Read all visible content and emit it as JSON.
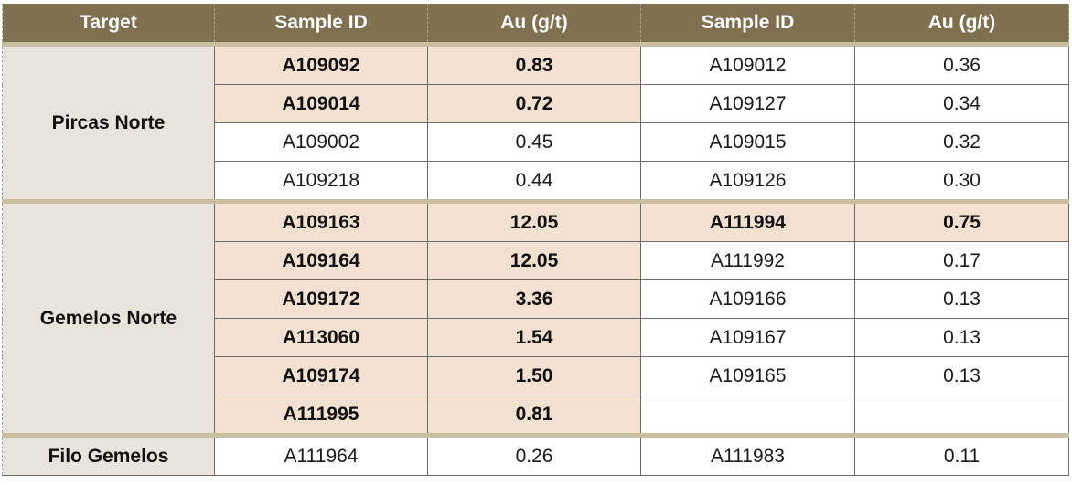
{
  "headers": [
    "Target",
    "Sample ID",
    "Au (g/t)",
    "Sample ID",
    "Au (g/t)"
  ],
  "groups": [
    {
      "target": "Pircas Norte",
      "rows": [
        {
          "id1": "A109092",
          "au1": "0.83",
          "hl1": true,
          "id2": "A109012",
          "au2": "0.36",
          "hl2": false
        },
        {
          "id1": "A109014",
          "au1": "0.72",
          "hl1": true,
          "id2": "A109127",
          "au2": "0.34",
          "hl2": false
        },
        {
          "id1": "A109002",
          "au1": "0.45",
          "hl1": false,
          "id2": "A109015",
          "au2": "0.32",
          "hl2": false
        },
        {
          "id1": "A109218",
          "au1": "0.44",
          "hl1": false,
          "id2": "A109126",
          "au2": "0.30",
          "hl2": false
        }
      ]
    },
    {
      "target": "Gemelos Norte",
      "rows": [
        {
          "id1": "A109163",
          "au1": "12.05",
          "hl1": true,
          "id2": "A111994",
          "au2": "0.75",
          "hl2": true
        },
        {
          "id1": "A109164",
          "au1": "12.05",
          "hl1": true,
          "id2": "A111992",
          "au2": "0.17",
          "hl2": false
        },
        {
          "id1": "A109172",
          "au1": "3.36",
          "hl1": true,
          "id2": "A109166",
          "au2": "0.13",
          "hl2": false
        },
        {
          "id1": "A113060",
          "au1": "1.54",
          "hl1": true,
          "id2": "A109167",
          "au2": "0.13",
          "hl2": false
        },
        {
          "id1": "A109174",
          "au1": "1.50",
          "hl1": true,
          "id2": "A109165",
          "au2": "0.13",
          "hl2": false
        },
        {
          "id1": "A111995",
          "au1": "0.81",
          "hl1": true,
          "id2": "",
          "au2": "",
          "hl2": false
        }
      ]
    },
    {
      "target": "Filo Gemelos",
      "rows": [
        {
          "id1": "A111964",
          "au1": "0.26",
          "hl1": false,
          "id2": "A111983",
          "au2": "0.11",
          "hl2": false
        }
      ]
    }
  ],
  "colors": {
    "header_bg": "#7f7050",
    "header_text": "#ffffff",
    "target_bg": "#e8e4db",
    "highlight_bg": "#f2e0d1",
    "group_divider": "#c8bea0"
  }
}
